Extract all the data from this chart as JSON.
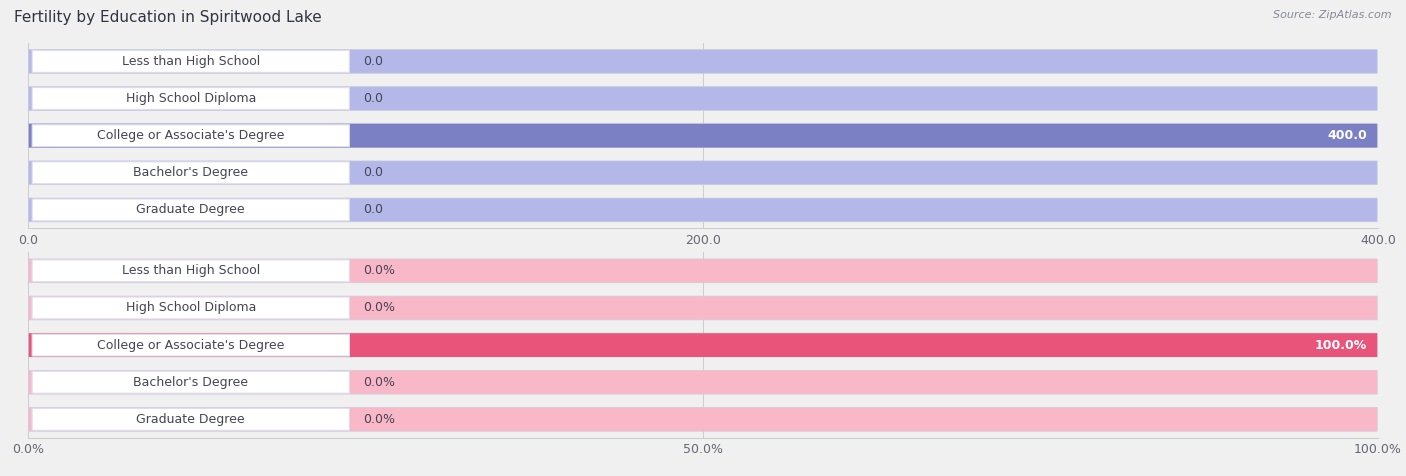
{
  "title": "Fertility by Education in Spiritwood Lake",
  "source": "Source: ZipAtlas.com",
  "categories": [
    "Less than High School",
    "High School Diploma",
    "College or Associate's Degree",
    "Bachelor's Degree",
    "Graduate Degree"
  ],
  "values_count": [
    0.0,
    0.0,
    400.0,
    0.0,
    0.0
  ],
  "values_pct": [
    0.0,
    0.0,
    100.0,
    0.0,
    0.0
  ],
  "bar_color_blue_light": "#b3b8e8",
  "bar_color_blue_full": "#7b7fc4",
  "bar_color_pink_light": "#f9b8c8",
  "bar_color_pink_full": "#e8547a",
  "label_box_color_blue": "#ffffff",
  "label_box_color_pink": "#ffffff",
  "label_text_color": "#444455",
  "axis_max_count": 400.0,
  "axis_max_pct": 100.0,
  "tick_count": [
    0.0,
    200.0,
    400.0
  ],
  "tick_pct": [
    0.0,
    50.0,
    100.0
  ],
  "background_color": "#f0f0f0",
  "row_bg_color": "#f0f0f0",
  "title_fontsize": 11,
  "label_fontsize": 9,
  "value_fontsize": 9,
  "source_fontsize": 8
}
